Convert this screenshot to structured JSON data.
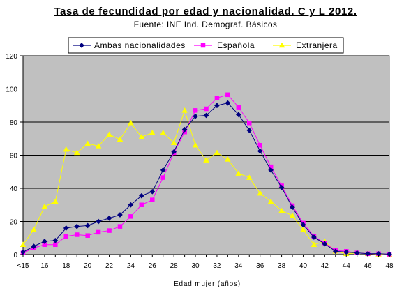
{
  "title": "Tasa de fecundidad por edad y nacionalidad. C y L 2012.",
  "subtitle": "Fuente: INE Ind. Demograf. Básicos",
  "chart_data": {
    "type": "line",
    "xlabel": "Edad mujer (años)",
    "ylabel": "",
    "ylim": [
      0,
      120
    ],
    "yticks": [
      0,
      20,
      40,
      60,
      80,
      100,
      120
    ],
    "grid": true,
    "legend_position": "top",
    "plot_background": "#c0c0c0",
    "x_categories": [
      "<15",
      "15",
      "16",
      "17",
      "18",
      "19",
      "20",
      "21",
      "22",
      "23",
      "24",
      "25",
      "26",
      "27",
      "28",
      "29",
      "30",
      "31",
      "32",
      "33",
      "34",
      "35",
      "36",
      "37",
      "38",
      "39",
      "40",
      "41",
      "42",
      "43",
      "44",
      "45",
      "46",
      "47",
      "48"
    ],
    "x_tick_labels": [
      "<15",
      "16",
      "18",
      "20",
      "22",
      "24",
      "26",
      "28",
      "30",
      "32",
      "34",
      "36",
      "38",
      "40",
      "42",
      "44",
      "46",
      "48"
    ],
    "series": [
      {
        "name": "Ambas nacionalidades",
        "color": "#000080",
        "marker": "diamond",
        "values": [
          1.5,
          5,
          8,
          8.5,
          16,
          17,
          17.5,
          20,
          22,
          24,
          30,
          35.5,
          38,
          51,
          62,
          75.5,
          83.5,
          84,
          90,
          91.5,
          84.5,
          75,
          62.5,
          51,
          40.5,
          28.5,
          18,
          10.5,
          6.5,
          2,
          1.5,
          1,
          0.5,
          0.5,
          0.2
        ]
      },
      {
        "name": "Española",
        "color": "#ff00ff",
        "marker": "square",
        "values": [
          1,
          4,
          6,
          6,
          11,
          12,
          11.5,
          13.5,
          14.5,
          17,
          23,
          30,
          33,
          46.5,
          61.5,
          74,
          87,
          88,
          94.5,
          96.5,
          89,
          79.5,
          66,
          53,
          41.5,
          29.5,
          19,
          11,
          7,
          2.5,
          2,
          1,
          0.5,
          0.5,
          0.2
        ]
      },
      {
        "name": "Extranjera",
        "color": "#ffff00",
        "marker": "triangle",
        "values": [
          6,
          15,
          29,
          32,
          63.5,
          61.5,
          67,
          65.5,
          72.5,
          69.5,
          79.5,
          71,
          73.5,
          73.5,
          67.5,
          87,
          66,
          57,
          61.5,
          57.5,
          49,
          46.5,
          37,
          32,
          26.5,
          23.5,
          15,
          6,
          8,
          2,
          0.5,
          1,
          0.5,
          0.2,
          0
        ]
      }
    ]
  }
}
